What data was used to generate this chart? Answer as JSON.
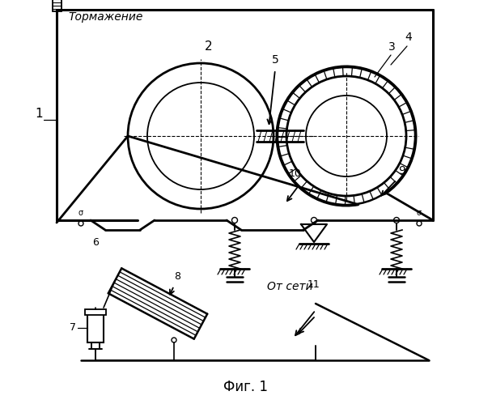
{
  "title": "Фиг. 1",
  "bg": "#ffffff",
  "lc": "#000000",
  "tormozheniye": "Тормажение",
  "ot_seti": "От сети",
  "fig_label": "Фиг. 1"
}
